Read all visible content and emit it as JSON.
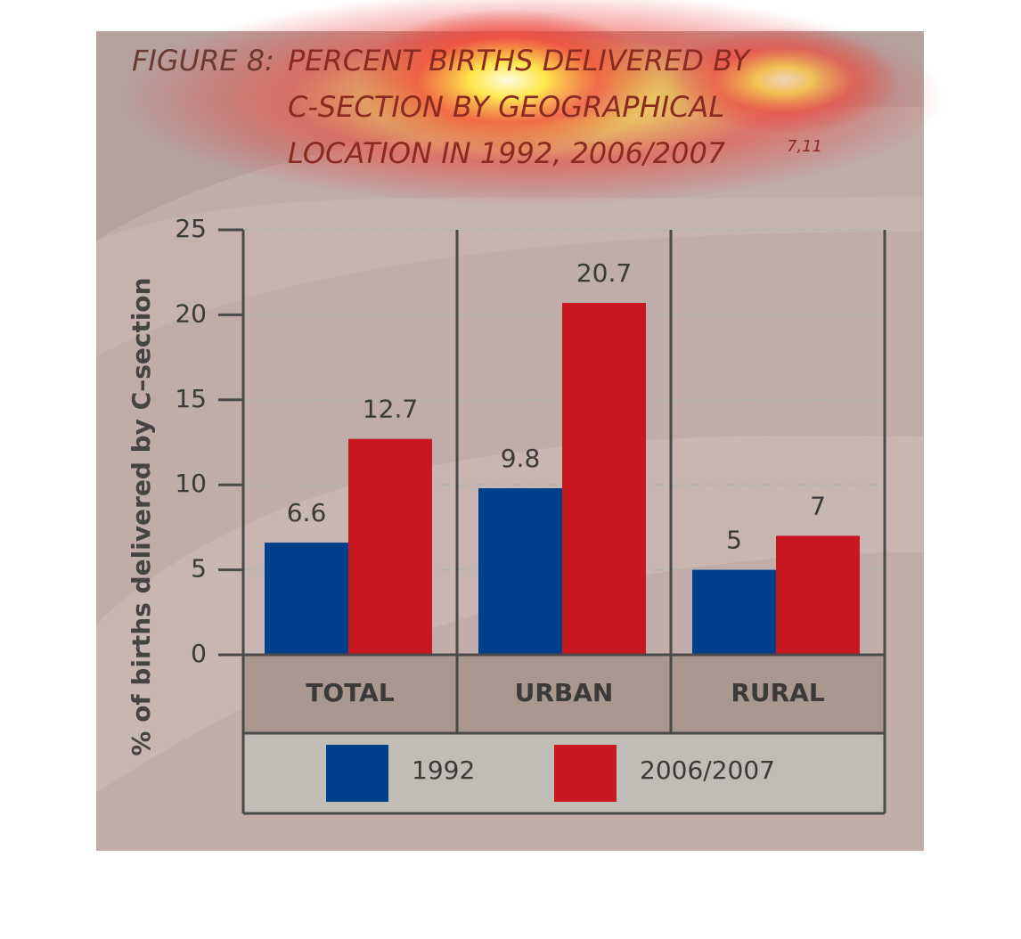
{
  "chart_data": {
    "type": "bar",
    "title_label": "FIGURE 8:",
    "title": [
      "PERCENT BIRTHS DELIVERED BY",
      "C-SECTION BY GEOGRAPHICAL",
      "LOCATION IN 1992, 2006/2007"
    ],
    "title_superscript": "7,11",
    "ylabel": "% of births delivered by C–section",
    "categories": [
      "TOTAL",
      "URBAN",
      "RURAL"
    ],
    "series": [
      {
        "name": "1992",
        "color": "#003f8a",
        "values": [
          6.6,
          9.8,
          5
        ]
      },
      {
        "name": "2006/2007",
        "color": "#c8171e",
        "values": [
          12.7,
          20.7,
          7
        ]
      }
    ],
    "ylim": [
      0,
      25
    ],
    "yticks": [
      0,
      5,
      10,
      15,
      20,
      25
    ],
    "grid": true
  }
}
